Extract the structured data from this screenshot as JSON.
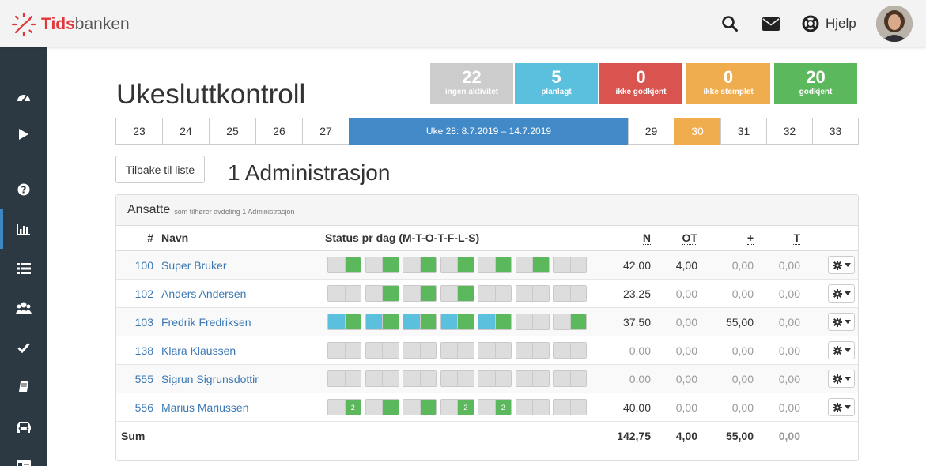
{
  "app": {
    "logo_bold": "Tids",
    "logo_rest": "banken"
  },
  "topbar": {
    "help_label": "Hjelp"
  },
  "page": {
    "title": "Ukesluttkontroll",
    "back_button": "Tilbake til liste",
    "department_title": "1 Administrasjon"
  },
  "stats": [
    {
      "value": "22",
      "label": "ingen aktivitet",
      "color": "#cccccc",
      "left": 0,
      "width": 0
    },
    {
      "value": "5",
      "label": "planlagt",
      "color": "#5bc0de"
    },
    {
      "value": "0",
      "label": "ikke godkjent",
      "color": "#d9534f"
    },
    {
      "value": "0",
      "label": "ikke stemplet",
      "color": "#f0ad4e"
    },
    {
      "value": "20",
      "label": "godkjent",
      "color": "#5cb85c"
    }
  ],
  "weeks": [
    "23",
    "24",
    "25",
    "26",
    "27",
    "Uke 28: 8.7.2019 – 14.7.2019",
    "29",
    "30",
    "31",
    "32",
    "33"
  ],
  "panel": {
    "title": "Ansatte",
    "subtitle": "som tilhører avdeling 1 Administrasjon"
  },
  "table": {
    "headers": {
      "num": "#",
      "name": "Navn",
      "status": "Status pr dag (M-T-O-T-F-L-S)",
      "n": "N",
      "ot": "OT",
      "plus": "+",
      "t": "T"
    },
    "rows": [
      {
        "num": "100",
        "name": "Super Bruker",
        "n": "42,00",
        "ot": "4,00",
        "plus": "0,00",
        "t": "0,00",
        "days": [
          [
            "grey",
            "green"
          ],
          [
            "grey",
            "green"
          ],
          [
            "grey",
            "green"
          ],
          [
            "grey",
            "green"
          ],
          [
            "grey",
            "green"
          ],
          [
            "grey",
            "green"
          ],
          [
            "grey",
            "grey"
          ]
        ],
        "day_labels": [
          "",
          "",
          "",
          "",
          "",
          "",
          ""
        ]
      },
      {
        "num": "102",
        "name": "Anders Andersen",
        "n": "23,25",
        "ot": "0,00",
        "plus": "0,00",
        "t": "0,00",
        "days": [
          [
            "grey",
            "grey"
          ],
          [
            "grey",
            "green"
          ],
          [
            "grey",
            "green"
          ],
          [
            "grey",
            "green"
          ],
          [
            "grey",
            "grey"
          ],
          [
            "grey",
            "grey"
          ],
          [
            "grey",
            "grey"
          ]
        ],
        "day_labels": [
          "",
          "",
          "",
          "",
          "",
          "",
          ""
        ]
      },
      {
        "num": "103",
        "name": "Fredrik Fredriksen",
        "n": "37,50",
        "ot": "0,00",
        "plus": "55,00",
        "t": "0,00",
        "days": [
          [
            "blue",
            "green"
          ],
          [
            "blue",
            "green"
          ],
          [
            "blue",
            "green"
          ],
          [
            "blue",
            "green"
          ],
          [
            "blue",
            "green"
          ],
          [
            "grey",
            "grey"
          ],
          [
            "grey",
            "green"
          ]
        ],
        "day_labels": [
          "",
          "",
          "",
          "",
          "",
          "",
          ""
        ]
      },
      {
        "num": "138",
        "name": "Klara Klaussen",
        "n": "0,00",
        "ot": "0,00",
        "plus": "0,00",
        "t": "0,00",
        "days": [
          [
            "grey",
            "grey"
          ],
          [
            "grey",
            "grey"
          ],
          [
            "grey",
            "grey"
          ],
          [
            "grey",
            "grey"
          ],
          [
            "grey",
            "grey"
          ],
          [
            "grey",
            "grey"
          ],
          [
            "grey",
            "grey"
          ]
        ],
        "day_labels": [
          "",
          "",
          "",
          "",
          "",
          "",
          ""
        ]
      },
      {
        "num": "555",
        "name": "Sigrun Sigrunsdottir",
        "n": "0,00",
        "ot": "0,00",
        "plus": "0,00",
        "t": "0,00",
        "days": [
          [
            "grey",
            "grey"
          ],
          [
            "grey",
            "grey"
          ],
          [
            "grey",
            "grey"
          ],
          [
            "grey",
            "grey"
          ],
          [
            "grey",
            "grey"
          ],
          [
            "grey",
            "grey"
          ],
          [
            "grey",
            "grey"
          ]
        ],
        "day_labels": [
          "",
          "",
          "",
          "",
          "",
          "",
          ""
        ]
      },
      {
        "num": "556",
        "name": "Marius Mariussen",
        "n": "40,00",
        "ot": "0,00",
        "plus": "0,00",
        "t": "0,00",
        "days": [
          [
            "grey",
            "green"
          ],
          [
            "grey",
            "green"
          ],
          [
            "grey",
            "green"
          ],
          [
            "grey",
            "green"
          ],
          [
            "grey",
            "green"
          ],
          [
            "grey",
            "grey"
          ],
          [
            "grey",
            "grey"
          ]
        ],
        "day_labels": [
          "2",
          "",
          "",
          "2",
          "2",
          "",
          ""
        ]
      }
    ],
    "sum": {
      "label": "Sum",
      "n": "142,75",
      "ot": "4,00",
      "plus": "55,00",
      "t": "0,00"
    }
  },
  "icons": {
    "sidebar": [
      "dashboard-icon",
      "play-icon",
      "question-icon",
      "bar-chart-icon",
      "list-icon",
      "users-icon",
      "check-icon",
      "book-icon",
      "car-icon",
      "id-card-icon"
    ],
    "top": [
      "search-icon",
      "envelope-icon",
      "lifebuoy-icon"
    ]
  }
}
